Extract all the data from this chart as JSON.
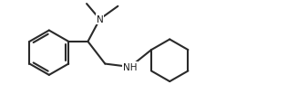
{
  "background": "#ffffff",
  "line_color": "#2a2a2a",
  "line_width": 1.5,
  "text_color": "#1a1a1a",
  "font_size": 7.5,
  "label_N": "N",
  "label_NH": "NH",
  "figsize": [
    3.27,
    1.15
  ],
  "dpi": 100,
  "xlim": [
    0.0,
    9.5
  ],
  "ylim": [
    0.3,
    3.6
  ]
}
